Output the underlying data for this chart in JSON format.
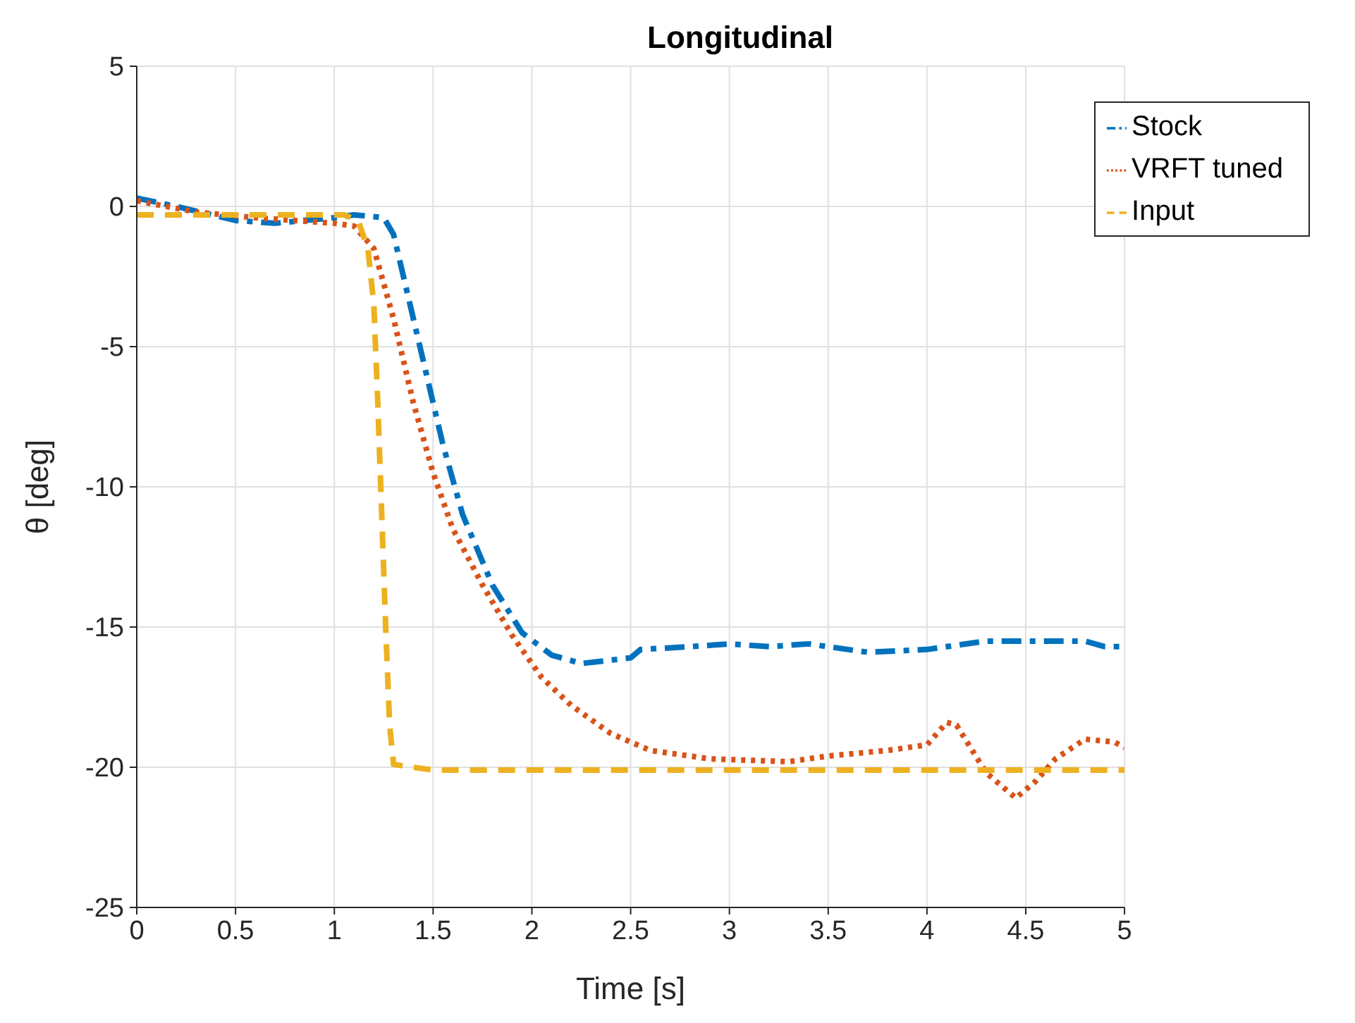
{
  "chart_data": {
    "type": "line",
    "title": "Longitudinal",
    "xlabel": "Time [s]",
    "ylabel": "θ [deg]",
    "xlim": [
      0,
      5
    ],
    "xticks": [
      0,
      0.5,
      1,
      1.5,
      2,
      2.5,
      3,
      3.5,
      4,
      4.5,
      5
    ],
    "ylim": [
      -25,
      5
    ],
    "yticks": [
      -25,
      -20,
      -15,
      -10,
      -5,
      0,
      5
    ],
    "grid": true,
    "legend": "top right",
    "marker": "none",
    "series": [
      {
        "name": "Stock",
        "color": "#0072bd",
        "line_style": "dashdot",
        "x": [
          0,
          0.2,
          0.5,
          0.7,
          1.0,
          1.1,
          1.25,
          1.3,
          1.35,
          1.45,
          1.55,
          1.65,
          1.8,
          1.95,
          2.1,
          2.25,
          2.5,
          2.55,
          2.8,
          3.0,
          3.2,
          3.4,
          3.7,
          4.0,
          4.3,
          4.5,
          4.8,
          4.9,
          5
        ],
        "values": [
          0.3,
          0,
          -0.5,
          -0.6,
          -0.4,
          -0.3,
          -0.4,
          -1,
          -2.5,
          -5.5,
          -8.5,
          -11,
          -13.5,
          -15.2,
          -16,
          -16.3,
          -16.1,
          -15.8,
          -15.7,
          -15.6,
          -15.7,
          -15.6,
          -15.9,
          -15.8,
          -15.5,
          -15.5,
          -15.5,
          -15.7,
          -15.7
        ]
      },
      {
        "name": "VRFT tuned",
        "color": "#d95319",
        "line_style": "dotted",
        "x": [
          0,
          0.3,
          0.6,
          1.0,
          1.1,
          1.2,
          1.3,
          1.4,
          1.5,
          1.6,
          1.75,
          1.9,
          2.05,
          2.2,
          2.4,
          2.6,
          2.9,
          3.3,
          3.5,
          3.8,
          4.0,
          4.1,
          4.15,
          4.3,
          4.45,
          4.55,
          4.65,
          4.8,
          4.95,
          5
        ],
        "values": [
          0.2,
          -0.2,
          -0.4,
          -0.6,
          -0.7,
          -1.5,
          -4,
          -7,
          -9.5,
          -11.5,
          -13.5,
          -15.3,
          -16.8,
          -17.8,
          -18.8,
          -19.4,
          -19.7,
          -19.8,
          -19.6,
          -19.4,
          -19.2,
          -18.4,
          -18.5,
          -20.2,
          -21.1,
          -20.5,
          -19.7,
          -19.0,
          -19.1,
          -19.3
        ]
      },
      {
        "name": "Input",
        "color": "#edb120",
        "line_style": "dashed",
        "x": [
          0,
          1.05,
          1.12,
          1.17,
          1.2,
          1.22,
          1.24,
          1.26,
          1.28,
          1.3,
          1.5,
          5
        ],
        "values": [
          -0.3,
          -0.3,
          -0.5,
          -1.5,
          -3.5,
          -7,
          -11,
          -15,
          -18.5,
          -19.9,
          -20.1,
          -20.1
        ]
      }
    ]
  }
}
